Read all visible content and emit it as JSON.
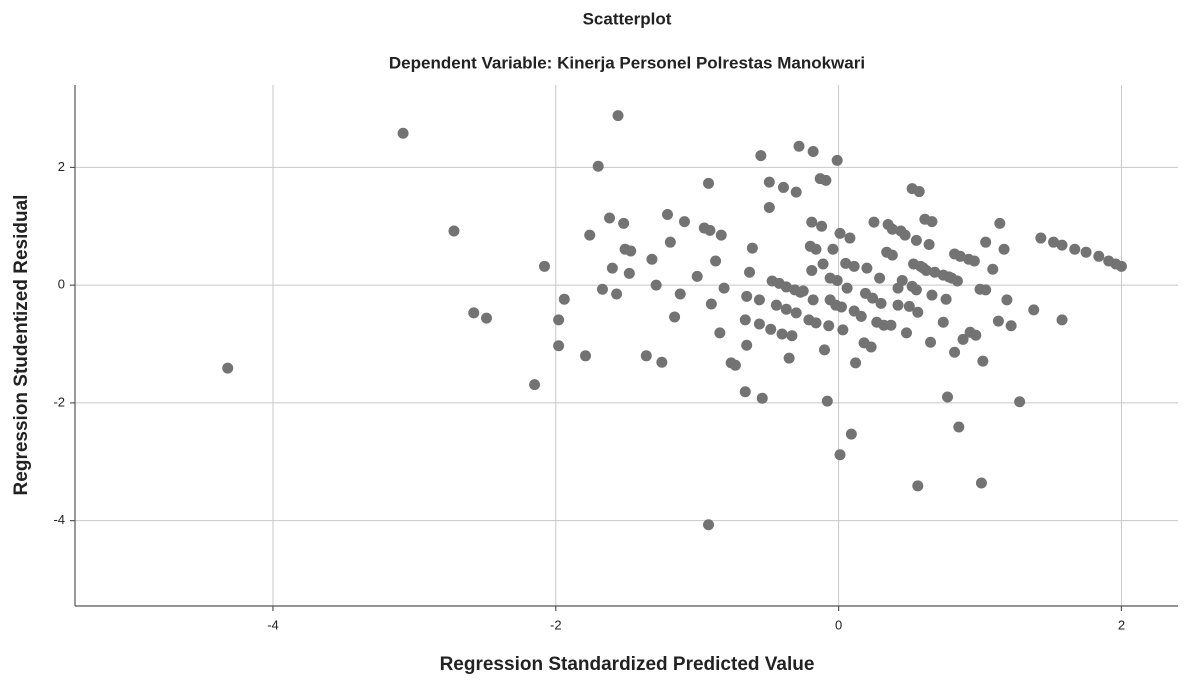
{
  "chart_data": {
    "type": "scatter",
    "title": "Scatterplot",
    "subtitle": "Dependent Variable: Kinerja Personel Polrestas Manokwari",
    "x_label": "Regression Standardized Predicted Value",
    "y_label": "Regression Studentized Residual",
    "color": "#737373",
    "grid": true,
    "xlim": [
      -5.4,
      2.4
    ],
    "ylim": [
      -5.45,
      3.4
    ],
    "xticks": [
      -4,
      -2,
      0,
      2
    ],
    "yticks": [
      -4,
      -2,
      0,
      2
    ],
    "x": [
      -4.32,
      -3.08,
      -2.72,
      -2.58,
      -2.49,
      -2.15,
      -2.08,
      -1.98,
      -1.98,
      -1.94,
      -1.79,
      -1.76,
      -1.7,
      -1.67,
      -1.62,
      -1.6,
      -1.57,
      -1.56,
      -1.52,
      -1.51,
      -1.47,
      -1.48,
      -1.36,
      -1.32,
      -1.29,
      -1.25,
      -1.21,
      -1.19,
      -1.16,
      -1.12,
      -1.09,
      -1.0,
      -0.95,
      -0.92,
      -0.91,
      -0.9,
      -0.92,
      -0.87,
      -0.84,
      -0.83,
      -0.81,
      -0.76,
      -0.73,
      -0.66,
      -0.65,
      -0.66,
      -0.65,
      -0.63,
      -0.61,
      -0.56,
      -0.56,
      -0.54,
      -0.55,
      -0.48,
      -0.49,
      -0.49,
      -0.47,
      -0.44,
      -0.42,
      -0.4,
      -0.39,
      -0.37,
      -0.37,
      -0.35,
      -0.33,
      -0.31,
      -0.3,
      -0.3,
      -0.28,
      -0.27,
      -0.25,
      -0.21,
      -0.2,
      -0.19,
      -0.18,
      -0.19,
      -0.18,
      -0.16,
      -0.16,
      -0.13,
      -0.12,
      -0.11,
      -0.1,
      -0.09,
      -0.08,
      -0.07,
      -0.06,
      -0.06,
      -0.04,
      -0.02,
      -0.01,
      -0.01,
      0.01,
      0.01,
      0.02,
      0.03,
      0.05,
      0.06,
      0.08,
      0.09,
      0.11,
      0.12,
      0.11,
      0.16,
      0.18,
      0.19,
      0.2,
      0.23,
      0.24,
      0.25,
      0.27,
      0.29,
      0.3,
      0.32,
      0.34,
      0.35,
      0.37,
      0.38,
      0.42,
      0.42,
      0.38,
      0.44,
      0.45,
      0.47,
      0.48,
      0.5,
      0.52,
      0.52,
      0.53,
      0.55,
      0.55,
      0.56,
      0.56,
      0.57,
      0.58,
      0.6,
      0.61,
      0.62,
      0.64,
      0.66,
      0.65,
      0.66,
      0.68,
      0.74,
      0.74,
      0.76,
      0.77,
      0.78,
      0.8,
      0.82,
      0.82,
      0.84,
      0.85,
      0.86,
      0.88,
      0.92,
      0.93,
      0.96,
      0.97,
      1.0,
      1.01,
      1.02,
      1.04,
      1.04,
      1.09,
      1.13,
      1.14,
      1.17,
      1.19,
      1.22,
      1.28,
      1.38,
      1.43,
      1.52,
      1.58,
      1.58,
      1.67,
      1.75,
      1.84,
      1.91,
      1.96,
      2.0
    ],
    "values": [
      -1.41,
      2.58,
      0.92,
      -0.47,
      -0.56,
      -1.69,
      0.32,
      -0.59,
      -1.03,
      -0.24,
      -1.2,
      0.85,
      2.02,
      -0.07,
      1.14,
      0.29,
      -0.15,
      2.88,
      1.05,
      0.61,
      0.58,
      0.2,
      -1.2,
      0.44,
      0.0,
      -1.31,
      1.2,
      0.73,
      -0.54,
      -0.15,
      1.08,
      0.15,
      0.97,
      1.73,
      0.93,
      -0.32,
      -4.07,
      0.41,
      -0.81,
      0.85,
      -0.05,
      -1.32,
      -1.36,
      -1.81,
      -0.19,
      -0.59,
      -1.02,
      0.22,
      0.63,
      -0.25,
      -0.66,
      -1.92,
      2.2,
      -0.75,
      1.32,
      1.75,
      0.07,
      -0.34,
      0.03,
      -0.83,
      1.66,
      -0.03,
      -0.41,
      -1.24,
      -0.86,
      -0.08,
      1.58,
      -0.47,
      2.36,
      -0.12,
      -0.1,
      -0.59,
      0.66,
      1.07,
      2.27,
      0.25,
      -0.25,
      -0.64,
      0.61,
      1.81,
      1.0,
      0.36,
      -1.1,
      1.78,
      -1.97,
      -0.69,
      0.12,
      -0.25,
      0.61,
      -0.34,
      0.08,
      2.12,
      0.88,
      -2.88,
      -0.37,
      -0.76,
      0.37,
      -0.05,
      0.8,
      -2.53,
      0.32,
      -1.32,
      -0.44,
      -0.53,
      -0.98,
      -0.14,
      0.29,
      -1.05,
      -0.22,
      1.07,
      -0.63,
      0.12,
      -0.31,
      -0.68,
      0.56,
      1.03,
      -0.68,
      0.51,
      -0.05,
      -0.34,
      0.95,
      0.92,
      0.08,
      0.85,
      -0.81,
      -0.36,
      -0.02,
      1.64,
      0.36,
      0.76,
      -0.08,
      -0.46,
      -3.41,
      1.59,
      0.32,
      0.29,
      1.12,
      0.25,
      0.69,
      1.08,
      -0.97,
      -0.17,
      0.22,
      0.17,
      -0.63,
      -0.24,
      -1.9,
      0.14,
      0.12,
      -1.14,
      0.53,
      0.07,
      -2.41,
      0.49,
      -0.92,
      0.44,
      -0.8,
      0.41,
      -0.85,
      -0.07,
      -3.36,
      -1.29,
      -0.08,
      0.73,
      0.27,
      -0.61,
      1.05,
      0.61,
      -0.25,
      -0.69,
      -1.98,
      -0.42,
      0.8,
      0.73,
      0.68,
      -0.59,
      0.61,
      0.56,
      0.49,
      0.41,
      0.36,
      0.32
    ]
  }
}
